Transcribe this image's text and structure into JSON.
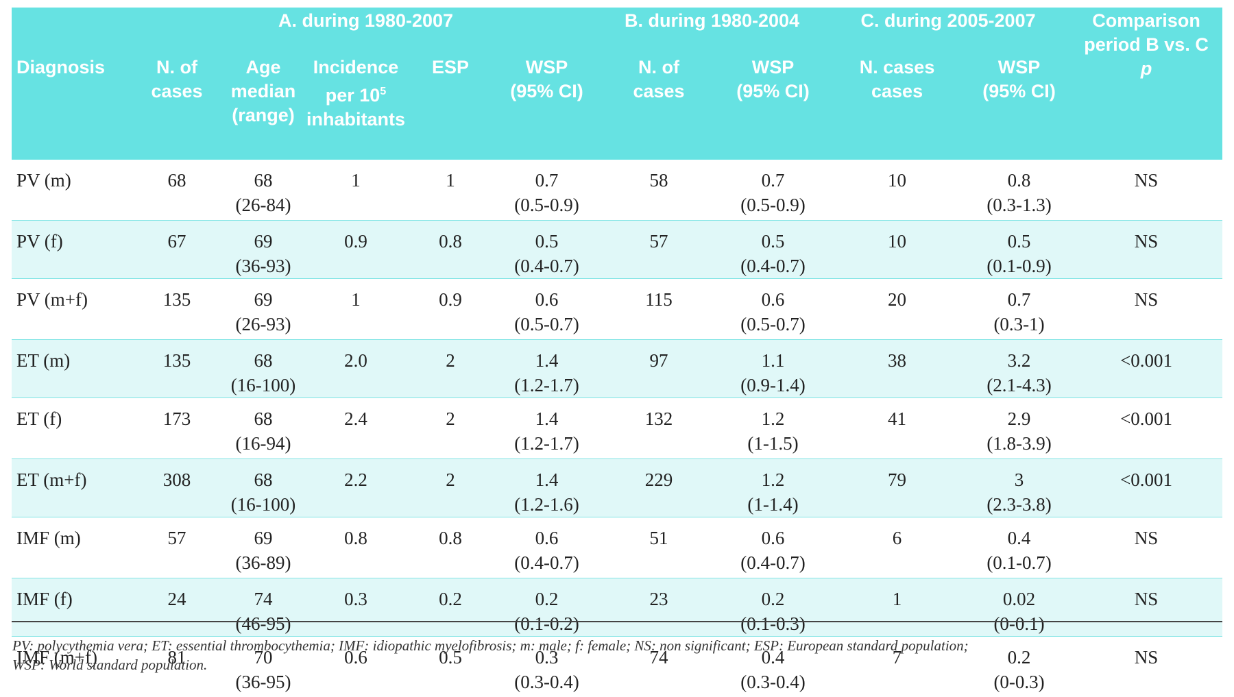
{
  "header": {
    "groups": [
      "A. during 1980-2007",
      "B. during 1980-2004",
      "C. during 2005-2007"
    ],
    "comparison": [
      "Comparison",
      "period B vs. C",
      "p"
    ],
    "columns": [
      [
        "Diagnosis"
      ],
      [
        "N. of",
        "cases"
      ],
      [
        "Age",
        "median",
        "(range)"
      ],
      [
        "Incidence",
        {
          "text": "per 10",
          "sup": "5"
        },
        "inhabitants"
      ],
      [
        "ESP"
      ],
      [
        "WSP",
        "(95% CI)"
      ],
      [
        "N. of",
        "cases"
      ],
      [
        "WSP",
        "(95% CI)"
      ],
      [
        "N. cases",
        "cases"
      ],
      [
        "WSP",
        "(95% CI)"
      ]
    ]
  },
  "table": {
    "rows": [
      [
        "PV (m)",
        "68",
        [
          "68",
          "(26-84)"
        ],
        "1",
        "1",
        [
          "0.7",
          "(0.5-0.9)"
        ],
        "58",
        [
          "0.7",
          "(0.5-0.9)"
        ],
        "10",
        [
          "0.8",
          "(0.3-1.3)"
        ],
        "NS"
      ],
      [
        "PV (f)",
        "67",
        [
          "69",
          "(36-93)"
        ],
        "0.9",
        "0.8",
        [
          "0.5",
          "(0.4-0.7)"
        ],
        "57",
        [
          "0.5",
          "(0.4-0.7)"
        ],
        "10",
        [
          "0.5",
          "(0.1-0.9)"
        ],
        "NS"
      ],
      [
        "PV (m+f)",
        "135",
        [
          "69",
          "(26-93)"
        ],
        "1",
        "0.9",
        [
          "0.6",
          "(0.5-0.7)"
        ],
        "115",
        [
          "0.6",
          "(0.5-0.7)"
        ],
        "20",
        [
          "0.7",
          "(0.3-1)"
        ],
        "NS"
      ],
      [
        "ET (m)",
        "135",
        [
          "68",
          "(16-100)"
        ],
        "2.0",
        "2",
        [
          "1.4",
          "(1.2-1.7)"
        ],
        "97",
        [
          "1.1",
          "(0.9-1.4)"
        ],
        "38",
        [
          "3.2",
          "(2.1-4.3)"
        ],
        "<0.001"
      ],
      [
        "ET (f)",
        "173",
        [
          "68",
          "(16-94)"
        ],
        "2.4",
        "2",
        [
          "1.4",
          "(1.2-1.7)"
        ],
        "132",
        [
          "1.2",
          "(1-1.5)"
        ],
        "41",
        [
          "2.9",
          "(1.8-3.9)"
        ],
        "<0.001"
      ],
      [
        "ET (m+f)",
        "308",
        [
          "68",
          "(16-100)"
        ],
        "2.2",
        "2",
        [
          "1.4",
          "(1.2-1.6)"
        ],
        "229",
        [
          "1.2",
          "(1-1.4)"
        ],
        "79",
        [
          "3",
          "(2.3-3.8)"
        ],
        "<0.001"
      ],
      [
        "IMF (m)",
        "57",
        [
          "69",
          "(36-89)"
        ],
        "0.8",
        "0.8",
        [
          "0.6",
          "(0.4-0.7)"
        ],
        "51",
        [
          "0.6",
          "(0.4-0.7)"
        ],
        "6",
        [
          "0.4",
          "(0.1-0.7)"
        ],
        "NS"
      ],
      [
        "IMF (f)",
        "24",
        [
          "74",
          "(46-95)"
        ],
        "0.3",
        "0.2",
        [
          "0.2",
          "(0.1-0.2)"
        ],
        "23",
        [
          "0.2",
          "(0.1-0.3)"
        ],
        "1",
        [
          "0.02",
          "(0-0.1)"
        ],
        "NS"
      ],
      [
        "IMF (m+f)",
        "81",
        [
          "70",
          "(36-95)"
        ],
        "0.6",
        "0.5",
        [
          "0.3",
          "(0.3-0.4)"
        ],
        "74",
        [
          "0.4",
          "(0.3-0.4)"
        ],
        "7",
        [
          "0.2",
          "(0-0.3)"
        ],
        "NS"
      ]
    ]
  },
  "footnote": [
    "PV: polycythemia vera; ET: essential thrombocythemia; IMF: idiopathic myelofibrosis; m: male; f: female; NS: non significant; ESP: European standard population;",
    "WSP: World standard population."
  ]
}
